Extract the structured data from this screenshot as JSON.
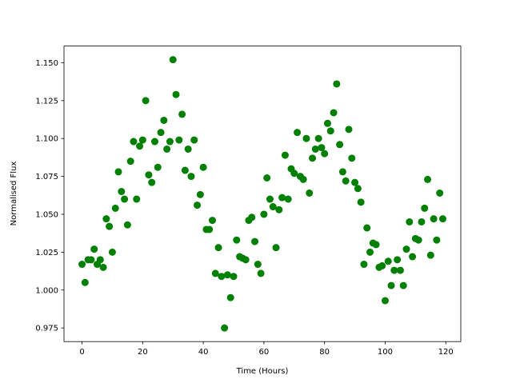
{
  "chart_data": {
    "type": "scatter",
    "title": "",
    "xlabel": "Time (Hours)",
    "ylabel": "Normalised Flux",
    "xlim": [
      -5.95,
      124.95
    ],
    "ylim": [
      0.966,
      1.161
    ],
    "xticks": [
      0,
      20,
      40,
      60,
      80,
      100,
      120
    ],
    "xtick_labels": [
      "0",
      "20",
      "40",
      "60",
      "80",
      "100",
      "120"
    ],
    "yticks": [
      0.975,
      1.0,
      1.025,
      1.05,
      1.075,
      1.1,
      1.125,
      1.15
    ],
    "ytick_labels": [
      "0.975",
      "1.000",
      "1.025",
      "1.050",
      "1.075",
      "1.100",
      "1.125",
      "1.150"
    ],
    "grid": false,
    "marker_color": "#008000",
    "x": [
      0,
      1,
      2,
      3,
      4,
      5,
      6,
      7,
      8,
      9,
      10,
      11,
      12,
      13,
      14,
      15,
      16,
      17,
      18,
      19,
      20,
      21,
      22,
      23,
      24,
      25,
      26,
      27,
      28,
      29,
      30,
      31,
      32,
      33,
      34,
      35,
      36,
      37,
      38,
      39,
      40,
      41,
      42,
      43,
      44,
      45,
      46,
      47,
      48,
      49,
      50,
      51,
      52,
      53,
      54,
      55,
      56,
      57,
      58,
      59,
      60,
      61,
      62,
      63,
      64,
      65,
      66,
      67,
      68,
      69,
      70,
      71,
      72,
      73,
      74,
      75,
      76,
      77,
      78,
      79,
      80,
      81,
      82,
      83,
      84,
      85,
      86,
      87,
      88,
      89,
      90,
      91,
      92,
      93,
      94,
      95,
      96,
      97,
      98,
      99,
      100,
      101,
      102,
      103,
      104,
      105,
      106,
      107,
      108,
      109,
      110,
      111,
      112,
      113,
      114,
      115,
      116,
      117,
      118,
      119
    ],
    "y": [
      1.017,
      1.005,
      1.02,
      1.02,
      1.027,
      1.017,
      1.02,
      1.015,
      1.047,
      1.042,
      1.025,
      1.054,
      1.078,
      1.065,
      1.06,
      1.043,
      1.085,
      1.098,
      1.06,
      1.095,
      1.099,
      1.125,
      1.076,
      1.071,
      1.098,
      1.081,
      1.104,
      1.112,
      1.093,
      1.098,
      1.152,
      1.129,
      1.099,
      1.116,
      1.079,
      1.093,
      1.075,
      1.099,
      1.056,
      1.063,
      1.081,
      1.04,
      1.04,
      1.046,
      1.011,
      1.028,
      1.009,
      0.975,
      1.01,
      0.995,
      1.009,
      1.033,
      1.022,
      1.021,
      1.02,
      1.046,
      1.048,
      1.032,
      1.017,
      1.011,
      1.05,
      1.074,
      1.06,
      1.055,
      1.028,
      1.053,
      1.061,
      1.089,
      1.06,
      1.08,
      1.077,
      1.104,
      1.075,
      1.073,
      1.1,
      1.064,
      1.087,
      1.093,
      1.1,
      1.094,
      1.09,
      1.11,
      1.105,
      1.117,
      1.136,
      1.096,
      1.078,
      1.072,
      1.106,
      1.087,
      1.071,
      1.067,
      1.058,
      1.017,
      1.041,
      1.025,
      1.031,
      1.03,
      1.015,
      1.016,
      0.993,
      1.019,
      1.003,
      1.013,
      1.02,
      1.013,
      1.003,
      1.027,
      1.045,
      1.022,
      1.034,
      1.033,
      1.045,
      1.054,
      1.073,
      1.023,
      1.047,
      1.033,
      1.064,
      1.047
    ]
  }
}
